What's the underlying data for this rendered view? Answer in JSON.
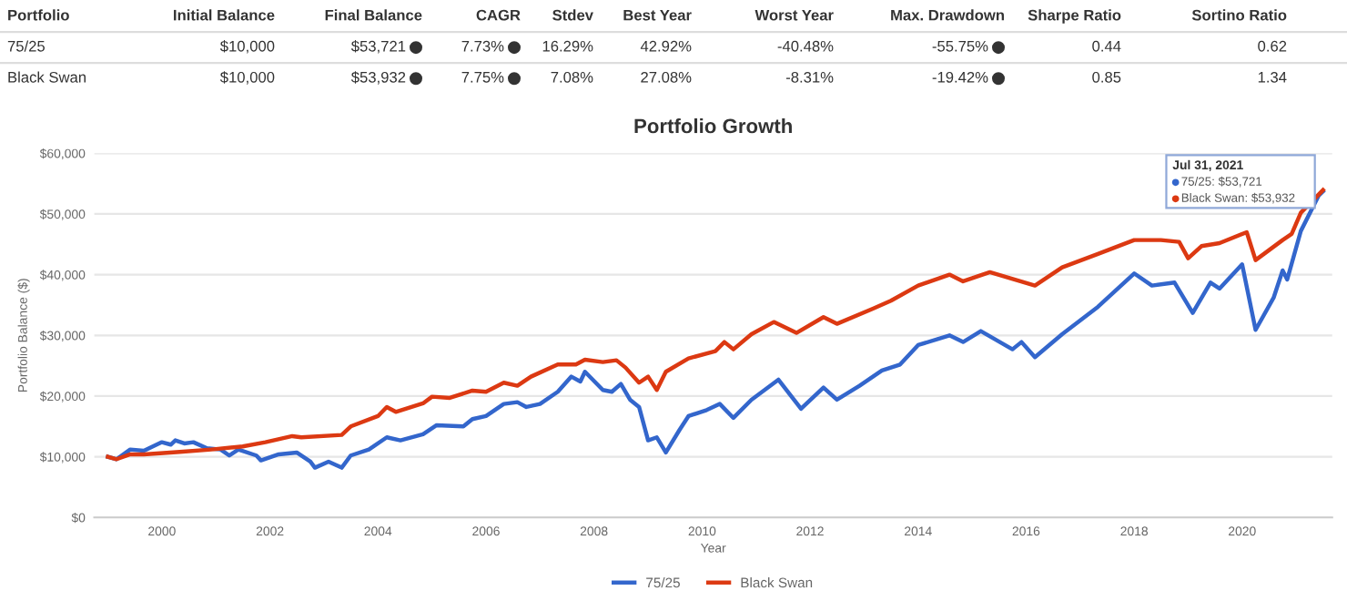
{
  "chart_data": [
    {
      "type": "other",
      "annotations": [
        "Portfolio",
        "Initial Balance",
        "Final Balance",
        "CAGR",
        "Stdev",
        "Best Year",
        "Worst Year",
        "Max. Drawdown",
        "Sharpe Ratio",
        "Sortino Ratio",
        "75/25",
        "$10,000",
        "$53,721",
        "7.73%",
        "16.29%",
        "42.92%",
        "-40.48%",
        "-55.75%",
        "0.44",
        "0.62",
        "Black Swan",
        "$10,000",
        "$53,932",
        "7.75%",
        "7.08%",
        "27.08%",
        "-8.31%",
        "-19.42%",
        "0.85",
        "1.34"
      ]
    },
    {
      "type": "line",
      "title": "Portfolio Growth",
      "xlabel": "Year",
      "ylabel": "Portfolio Balance ($)",
      "xlim": [
        "1998-10",
        "2021-09"
      ],
      "xticks": [
        {
          "value": "2000",
          "label": "2000"
        },
        {
          "value": "2002",
          "label": "2002"
        },
        {
          "value": "2004",
          "label": "2004"
        },
        {
          "value": "2006",
          "label": "2006"
        },
        {
          "value": "2008",
          "label": "2008"
        },
        {
          "value": "2010",
          "label": "2010"
        },
        {
          "value": "2012",
          "label": "2012"
        },
        {
          "value": "2014",
          "label": "2014"
        },
        {
          "value": "2016",
          "label": "2016"
        },
        {
          "value": "2018",
          "label": "2018"
        },
        {
          "value": "2020",
          "label": "2020"
        }
      ],
      "ylim": [
        0,
        60000
      ],
      "yticks": [
        {
          "value": 0,
          "label": "$0"
        },
        {
          "value": 10000,
          "label": "$10,000"
        },
        {
          "value": 20000,
          "label": "$20,000"
        },
        {
          "value": 30000,
          "label": "$30,000"
        },
        {
          "value": 40000,
          "label": "$40,000"
        },
        {
          "value": 50000,
          "label": "$50,000"
        },
        {
          "value": 60000,
          "label": "$60,000"
        }
      ],
      "grid": "y",
      "legend": "bottom",
      "marker": "none",
      "line_style": "solid",
      "annotations": [
        "Jul 31, 2021",
        "75/25: $53,721",
        "Black Swan: $53,932"
      ],
      "series": [
        {
          "name": "75/25",
          "color": "#3366cc",
          "x": [
            "1999-01",
            "1999-03",
            "1999-06",
            "1999-09",
            "2000-01",
            "2000-03",
            "2000-04",
            "2000-06",
            "2000-08",
            "2000-11",
            "2001-02",
            "2001-04",
            "2001-06",
            "2001-10",
            "2001-11",
            "2002-03",
            "2002-07",
            "2002-10",
            "2002-11",
            "2003-02",
            "2003-05",
            "2003-07",
            "2003-11",
            "2004-03",
            "2004-06",
            "2004-11",
            "2005-02",
            "2005-08",
            "2005-10",
            "2006-01",
            "2006-05",
            "2006-08",
            "2006-10",
            "2007-01",
            "2007-05",
            "2007-08",
            "2007-10",
            "2007-11",
            "2008-03",
            "2008-05",
            "2008-07",
            "2008-09",
            "2008-11",
            "2009-01",
            "2009-03",
            "2009-05",
            "2009-08",
            "2009-10",
            "2010-02",
            "2010-05",
            "2010-08",
            "2010-12",
            "2011-06",
            "2011-11",
            "2012-04",
            "2012-07",
            "2012-12",
            "2013-05",
            "2013-09",
            "2014-01",
            "2014-08",
            "2014-11",
            "2015-03",
            "2015-10",
            "2015-12",
            "2016-03",
            "2016-09",
            "2017-05",
            "2018-01",
            "2018-05",
            "2018-10",
            "2019-02",
            "2019-06",
            "2019-08",
            "2020-01",
            "2020-04",
            "2020-08",
            "2020-10",
            "2020-11",
            "2021-02",
            "2021-06",
            "2021-07"
          ],
          "values": [
            10000,
            9600,
            11200,
            11000,
            12400,
            12000,
            12700,
            12200,
            12400,
            11400,
            11200,
            10200,
            11200,
            10200,
            9400,
            10400,
            10700,
            9200,
            8200,
            9200,
            8200,
            10200,
            11200,
            13200,
            12700,
            13700,
            15200,
            15000,
            16200,
            16700,
            18700,
            19000,
            18200,
            18700,
            20700,
            23200,
            22400,
            24000,
            21000,
            20700,
            22000,
            19400,
            18200,
            12700,
            13200,
            10700,
            14400,
            16700,
            17700,
            18700,
            16400,
            19400,
            22700,
            17900,
            21400,
            19400,
            21700,
            24200,
            25200,
            28400,
            30000,
            28900,
            30700,
            27700,
            28900,
            26400,
            30200,
            34700,
            40200,
            38200,
            38700,
            33700,
            38700,
            37700,
            41700,
            30900,
            36200,
            40700,
            39200,
            47200,
            53000,
            53721
          ]
        },
        {
          "name": "Black Swan",
          "color": "#dc3912",
          "x": [
            "1999-01",
            "1999-03",
            "1999-06",
            "1999-09",
            "2000-05",
            "2000-12",
            "2001-07",
            "2001-12",
            "2002-06",
            "2002-08",
            "2003-05",
            "2003-07",
            "2004-01",
            "2004-03",
            "2004-05",
            "2004-11",
            "2005-01",
            "2005-05",
            "2005-10",
            "2006-01",
            "2006-05",
            "2006-08",
            "2006-11",
            "2007-05",
            "2007-09",
            "2007-11",
            "2008-03",
            "2008-06",
            "2008-08",
            "2008-11",
            "2009-01",
            "2009-03",
            "2009-05",
            "2009-10",
            "2010-04",
            "2010-06",
            "2010-08",
            "2010-12",
            "2011-05",
            "2011-10",
            "2012-04",
            "2012-07",
            "2013-03",
            "2013-07",
            "2014-01",
            "2014-08",
            "2014-11",
            "2015-05",
            "2016-03",
            "2016-09",
            "2017-05",
            "2018-01",
            "2018-07",
            "2018-11",
            "2019-01",
            "2019-04",
            "2019-08",
            "2020-02",
            "2020-04",
            "2020-10",
            "2020-12",
            "2021-02",
            "2021-07"
          ],
          "values": [
            10000,
            9600,
            10400,
            10400,
            10800,
            11200,
            11700,
            12400,
            13400,
            13200,
            13600,
            15000,
            16700,
            18200,
            17400,
            18800,
            19900,
            19700,
            20900,
            20700,
            22200,
            21700,
            23200,
            25200,
            25200,
            26000,
            25600,
            25900,
            24700,
            22200,
            23200,
            21000,
            24000,
            26200,
            27400,
            28900,
            27700,
            30200,
            32200,
            30400,
            33000,
            31900,
            34400,
            35700,
            38200,
            40000,
            38900,
            40400,
            38200,
            41200,
            43400,
            45700,
            45700,
            45400,
            42700,
            44700,
            45200,
            47000,
            42400,
            45700,
            46700,
            50200,
            53932
          ]
        }
      ]
    }
  ]
}
